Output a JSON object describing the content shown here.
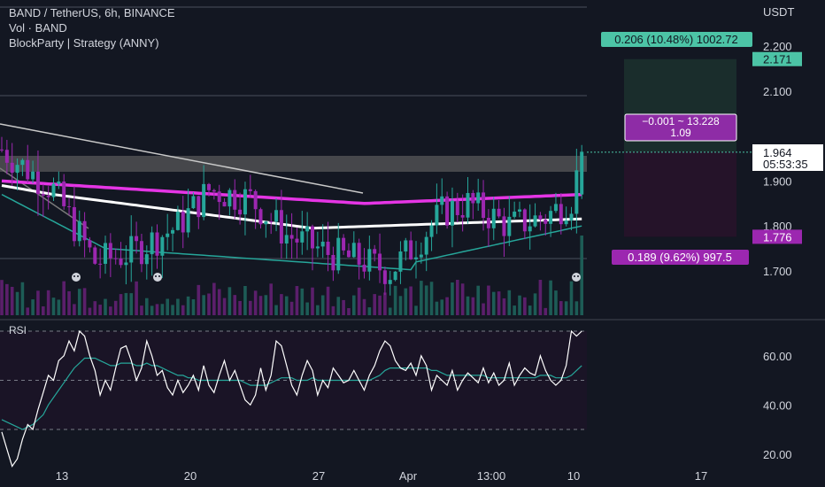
{
  "header": {
    "symbol_line": "BAND / TetherUS, 6h, BINANCE",
    "volume_line": "Vol · BAND",
    "strategy_line": "BlockParty | Strategy (ANNY)"
  },
  "price_axis": {
    "unit": "USDT",
    "ticks": [
      "2.200",
      "2.100",
      "1.900",
      "1.800",
      "1.700"
    ],
    "tick_values": [
      2.2,
      2.1,
      1.9,
      1.8,
      1.7
    ],
    "target_tag": "2.171",
    "entry_tag": "1.965",
    "last_price": "1.964",
    "countdown": "05:53:35",
    "stop_tag": "1.776"
  },
  "position": {
    "target_label": "0.206 (10.48%) 1002.72",
    "stop_label": "0.189 (9.62%) 997.5",
    "pnl_line1": "−0.001 ~ 13.228",
    "pnl_line2": "1.09",
    "target_price": 2.171,
    "entry_price": 1.965,
    "stop_price": 1.776
  },
  "rsi": {
    "label": "RSI",
    "ticks": [
      "60.00",
      "40.00",
      "20.00"
    ],
    "tick_values": [
      60,
      40,
      20
    ],
    "upper_band": 70,
    "lower_band": 30,
    "values": [
      29,
      22,
      15,
      18,
      26,
      32,
      30,
      38,
      45,
      52,
      50,
      58,
      60,
      66,
      62,
      70,
      68,
      60,
      54,
      44,
      50,
      46,
      55,
      63,
      64,
      58,
      50,
      55,
      66,
      60,
      52,
      54,
      47,
      44,
      50,
      45,
      48,
      52,
      46,
      56,
      48,
      45,
      52,
      58,
      50,
      54,
      48,
      42,
      40,
      44,
      55,
      46,
      52,
      66,
      64,
      56,
      48,
      44,
      52,
      58,
      54,
      44,
      50,
      47,
      55,
      52,
      49,
      50,
      54,
      50,
      46,
      52,
      56,
      62,
      66,
      64,
      58,
      55,
      54,
      57,
      52,
      60,
      56,
      46,
      52,
      50,
      48,
      54,
      46,
      50,
      53,
      51,
      49,
      55,
      49,
      53,
      48,
      50,
      57,
      48,
      52,
      55,
      53,
      52,
      60,
      54,
      50,
      48,
      50,
      56,
      70,
      68,
      70
    ],
    "ma_values": [
      34,
      33,
      32,
      31,
      30,
      31,
      32,
      34,
      36,
      40,
      43,
      46,
      49,
      52,
      55,
      57,
      59,
      59,
      59,
      58,
      57,
      56,
      56,
      57,
      57,
      57,
      56,
      56,
      57,
      56,
      56,
      55,
      54,
      53,
      52,
      52,
      51,
      51,
      50,
      50,
      50,
      50,
      50,
      50,
      50,
      50,
      50,
      49,
      48,
      48,
      48,
      48,
      49,
      50,
      51,
      51,
      51,
      50,
      50,
      50,
      51,
      50,
      50,
      50,
      50,
      50,
      50,
      50,
      50,
      50,
      50,
      50,
      51,
      52,
      54,
      55,
      55,
      55,
      55,
      55,
      55,
      55,
      55,
      54,
      54,
      53,
      52,
      52,
      52,
      52,
      52,
      52,
      52,
      52,
      51,
      51,
      51,
      51,
      51,
      51,
      51,
      51,
      51,
      51,
      52,
      52,
      52,
      51,
      51,
      51,
      52,
      54,
      56
    ]
  },
  "time_axis": {
    "labels": [
      "13",
      "20",
      "27",
      "Apr",
      "13:00",
      "10",
      "17"
    ]
  },
  "chart_data": {
    "type": "candlestick",
    "title": "BAND / TetherUS, 6h, BINANCE",
    "ylabel": "USDT",
    "ylim": [
      1.6,
      2.28
    ],
    "x_labels": [
      "13",
      "20",
      "27",
      "Apr",
      "13:00",
      "10",
      "17"
    ],
    "rsi_ylim": [
      16,
      75
    ],
    "colors": {
      "up": "#26a69a",
      "down": "#9c27b0",
      "magenta_line": "#e535e5",
      "white_line": "#ffffff",
      "teal_line": "#26a69a",
      "trend_line": "#c9c9c9",
      "zone": "#5d5d5d",
      "target_zone": "#1a2d2c",
      "stop_zone": "#251329",
      "target_tag_bg": "#4cc4a6",
      "stop_tag_bg": "#9c27b0",
      "pnl_box": "#8e2ca6"
    }
  }
}
